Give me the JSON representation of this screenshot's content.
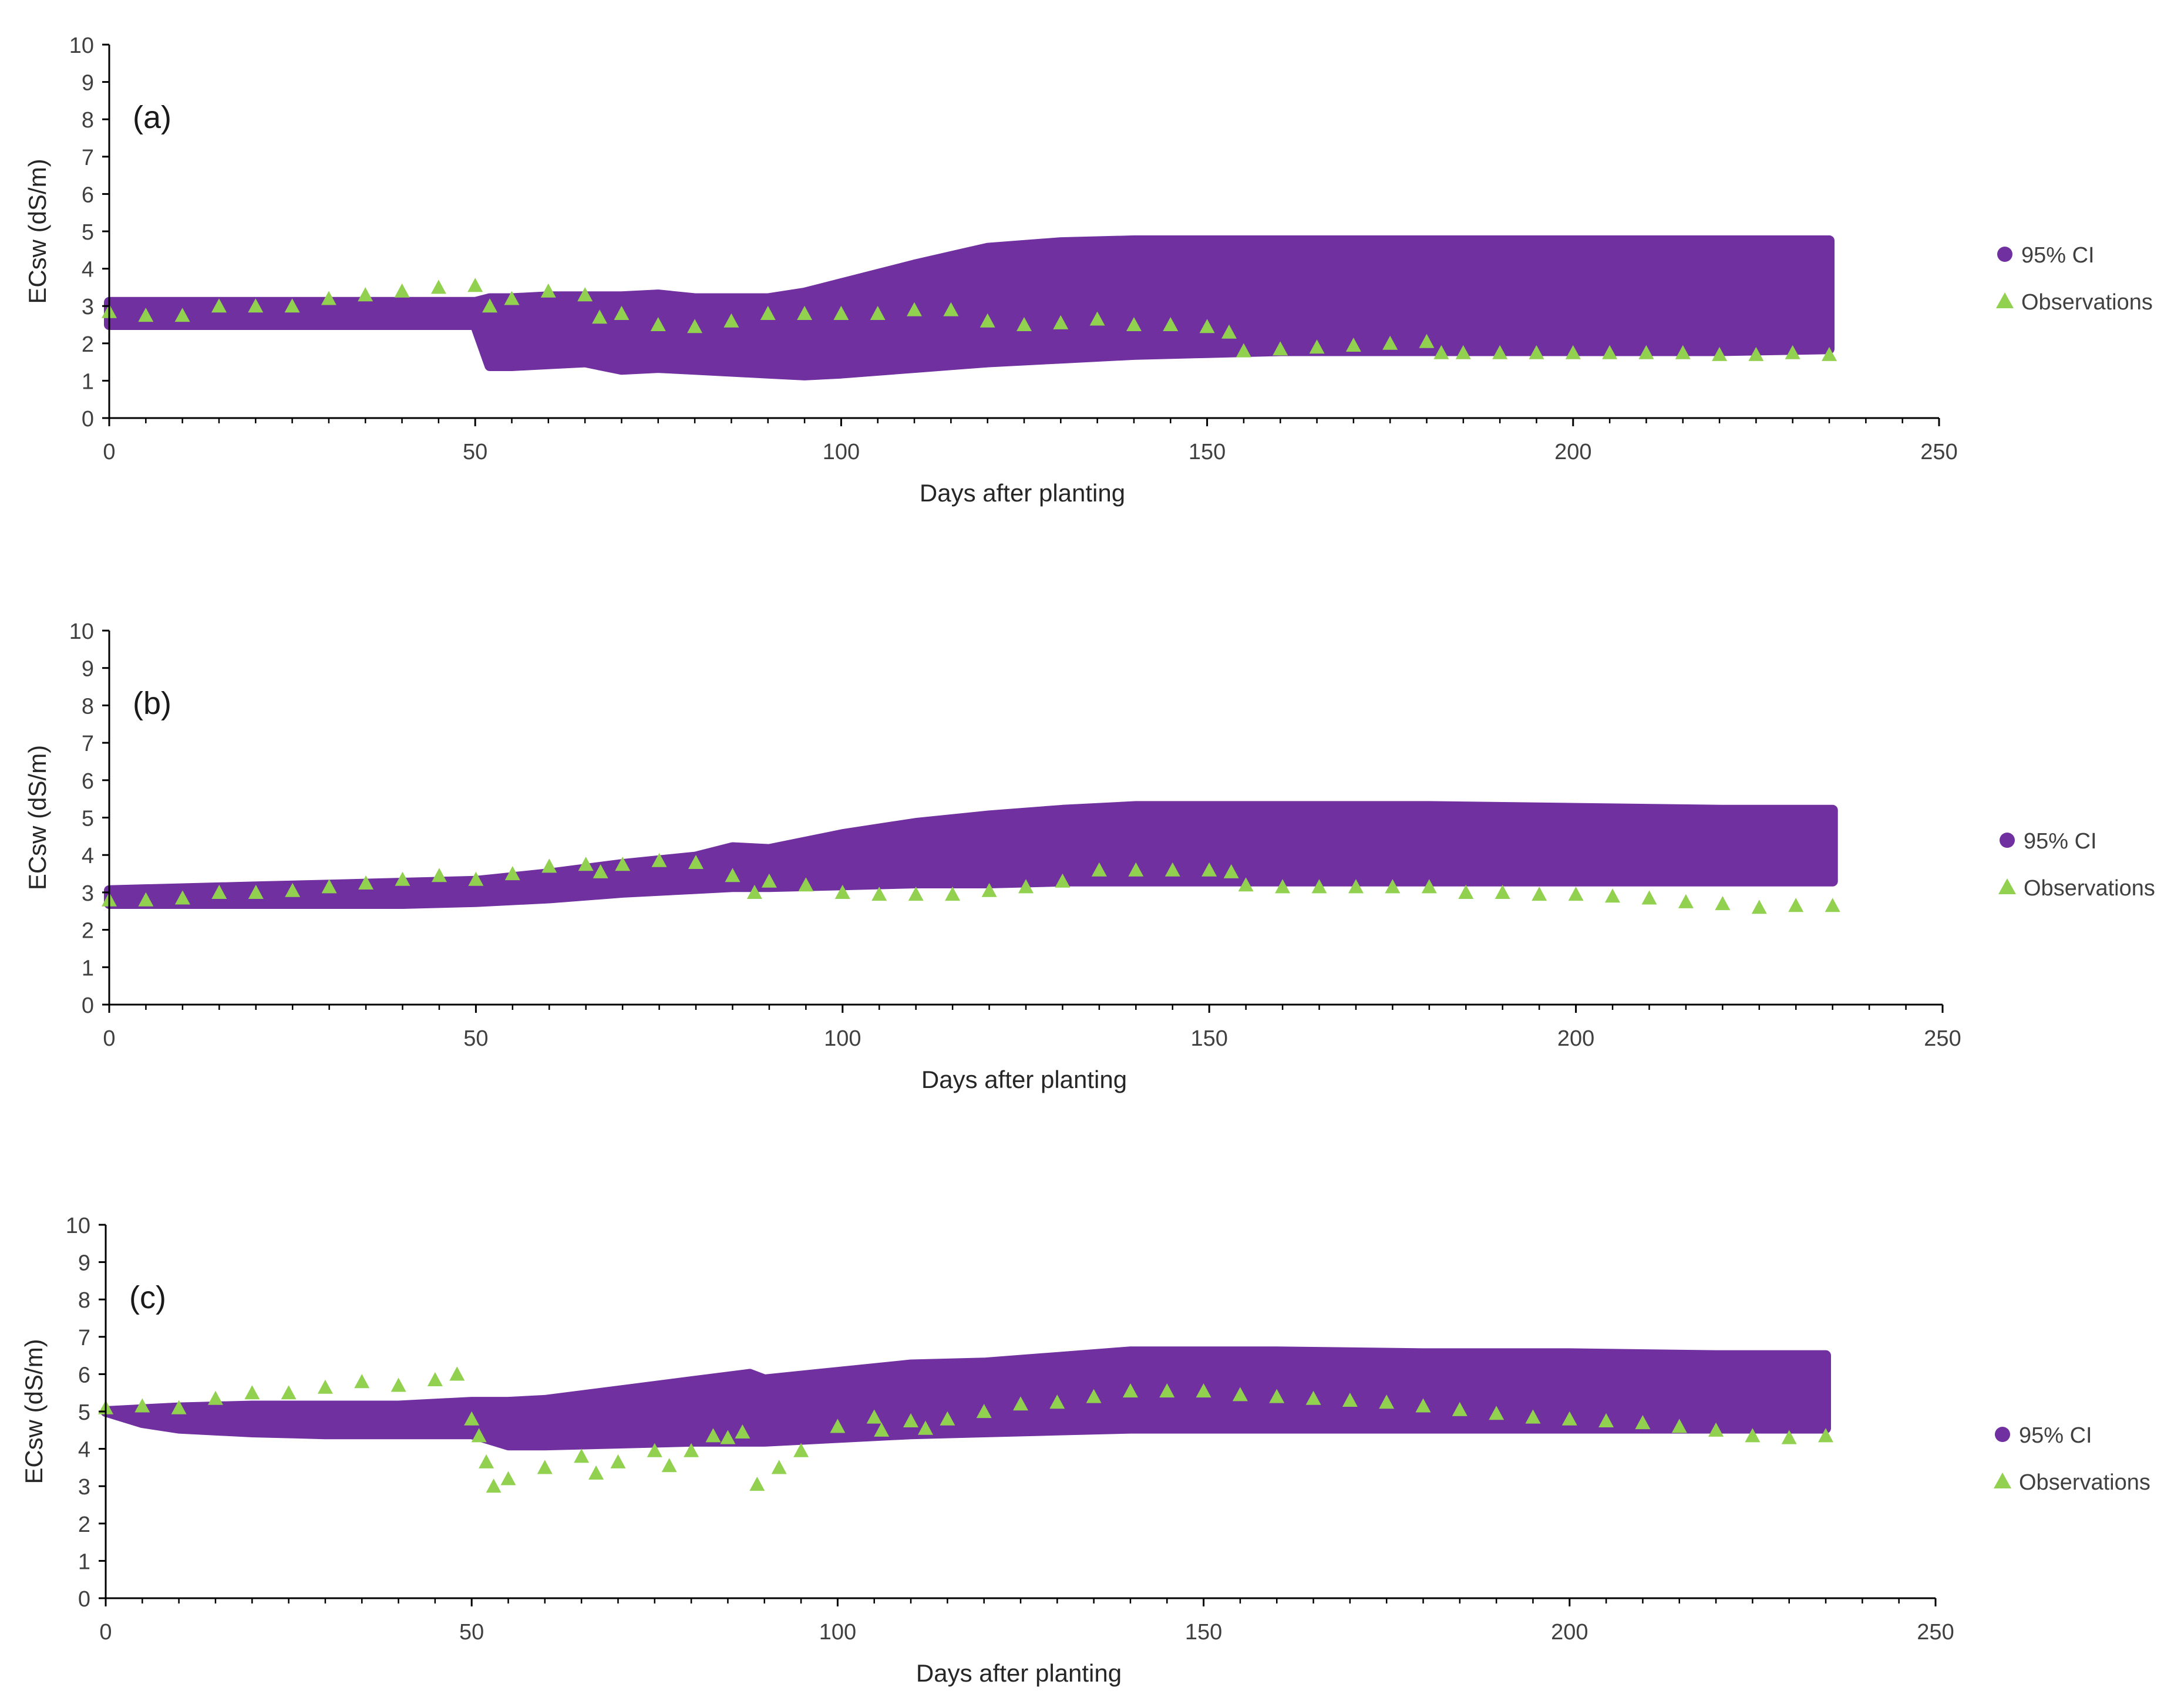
{
  "figure": {
    "colors": {
      "ci": "#7030A0",
      "observations": "#92D050",
      "axis": "#000000"
    },
    "x_ticks": [
      "0",
      "50",
      "100",
      "150",
      "200",
      "250"
    ],
    "y_ticks": [
      "0",
      "1",
      "2",
      "3",
      "4",
      "5",
      "6",
      "7",
      "8",
      "9",
      "10"
    ]
  },
  "chart_data": [
    {
      "type": "area",
      "panel_label": "(a)",
      "xlabel": "Days after planting",
      "ylabel": "ECsw (dS/m)",
      "xlim": [
        0,
        250
      ],
      "ylim": [
        0,
        10
      ],
      "legend": {
        "placement": "right",
        "entries": [
          "95% CI",
          "Observations"
        ]
      },
      "series": [
        {
          "name": "95% CI",
          "kind": "band",
          "x": [
            0,
            10,
            20,
            30,
            40,
            50,
            52,
            55,
            60,
            65,
            70,
            75,
            80,
            85,
            90,
            95,
            100,
            110,
            120,
            130,
            140,
            150,
            160,
            180,
            200,
            220,
            235
          ],
          "lower": [
            2.5,
            2.5,
            2.5,
            2.5,
            2.5,
            2.5,
            1.4,
            1.4,
            1.45,
            1.5,
            1.3,
            1.35,
            1.3,
            1.25,
            1.2,
            1.15,
            1.2,
            1.35,
            1.5,
            1.6,
            1.7,
            1.75,
            1.8,
            1.8,
            1.8,
            1.8,
            1.85
          ],
          "upper": [
            3.1,
            3.1,
            3.1,
            3.1,
            3.1,
            3.1,
            3.2,
            3.2,
            3.25,
            3.25,
            3.25,
            3.3,
            3.2,
            3.2,
            3.2,
            3.35,
            3.6,
            4.1,
            4.55,
            4.7,
            4.75,
            4.75,
            4.75,
            4.75,
            4.75,
            4.75,
            4.75
          ]
        },
        {
          "name": "Observations",
          "kind": "markers",
          "x": [
            0,
            5,
            10,
            15,
            20,
            25,
            30,
            35,
            40,
            45,
            50,
            52,
            55,
            60,
            65,
            67,
            70,
            75,
            80,
            85,
            90,
            95,
            100,
            105,
            110,
            115,
            120,
            125,
            130,
            135,
            140,
            145,
            150,
            153,
            155,
            160,
            165,
            170,
            175,
            180,
            182,
            185,
            190,
            195,
            200,
            205,
            210,
            215,
            220,
            225,
            230,
            235
          ],
          "y": [
            2.85,
            2.75,
            2.75,
            3.0,
            3.0,
            3.0,
            3.2,
            3.3,
            3.4,
            3.5,
            3.55,
            3.0,
            3.2,
            3.4,
            3.3,
            2.7,
            2.8,
            2.5,
            2.45,
            2.6,
            2.8,
            2.8,
            2.8,
            2.8,
            2.9,
            2.9,
            2.6,
            2.5,
            2.55,
            2.65,
            2.5,
            2.5,
            2.45,
            2.3,
            1.8,
            1.85,
            1.9,
            1.95,
            2.0,
            2.05,
            1.75,
            1.75,
            1.75,
            1.75,
            1.75,
            1.75,
            1.75,
            1.75,
            1.7,
            1.7,
            1.75,
            1.7
          ]
        }
      ]
    },
    {
      "type": "area",
      "panel_label": "(b)",
      "xlabel": "Days after planting",
      "ylabel": "ECsw (dS/m)",
      "xlim": [
        0,
        250
      ],
      "ylim": [
        0,
        10
      ],
      "legend": {
        "placement": "right",
        "entries": [
          "95% CI",
          "Observations"
        ]
      },
      "series": [
        {
          "name": "95% CI",
          "kind": "band",
          "x": [
            0,
            10,
            20,
            30,
            40,
            50,
            60,
            70,
            80,
            85,
            90,
            100,
            110,
            120,
            130,
            140,
            150,
            160,
            180,
            200,
            220,
            235
          ],
          "lower": [
            2.7,
            2.7,
            2.7,
            2.7,
            2.7,
            2.75,
            2.85,
            3.0,
            3.1,
            3.15,
            3.15,
            3.2,
            3.25,
            3.25,
            3.3,
            3.3,
            3.3,
            3.3,
            3.3,
            3.3,
            3.3,
            3.3
          ],
          "upper": [
            3.05,
            3.1,
            3.15,
            3.2,
            3.25,
            3.3,
            3.5,
            3.75,
            3.95,
            4.2,
            4.15,
            4.55,
            4.85,
            5.05,
            5.2,
            5.3,
            5.3,
            5.3,
            5.3,
            5.25,
            5.2,
            5.2
          ]
        },
        {
          "name": "Observations",
          "kind": "markers",
          "x": [
            0,
            5,
            10,
            15,
            20,
            25,
            30,
            35,
            40,
            45,
            50,
            55,
            60,
            65,
            67,
            70,
            75,
            80,
            85,
            88,
            90,
            95,
            100,
            105,
            110,
            115,
            120,
            125,
            130,
            135,
            140,
            145,
            150,
            153,
            155,
            160,
            165,
            170,
            175,
            180,
            185,
            190,
            195,
            200,
            205,
            210,
            215,
            220,
            225,
            230,
            235
          ],
          "y": [
            2.8,
            2.8,
            2.85,
            3.0,
            3.0,
            3.05,
            3.15,
            3.25,
            3.35,
            3.45,
            3.35,
            3.5,
            3.7,
            3.75,
            3.55,
            3.75,
            3.85,
            3.8,
            3.45,
            3.0,
            3.3,
            3.2,
            3.0,
            2.95,
            2.95,
            2.95,
            3.05,
            3.15,
            3.3,
            3.6,
            3.6,
            3.6,
            3.6,
            3.55,
            3.2,
            3.15,
            3.15,
            3.15,
            3.15,
            3.15,
            3.0,
            3.0,
            2.95,
            2.95,
            2.9,
            2.85,
            2.75,
            2.7,
            2.6,
            2.65,
            2.65
          ]
        }
      ]
    },
    {
      "type": "area",
      "panel_label": "(c)",
      "xlabel": "Days after planting",
      "ylabel": "ECsw (dS/m)",
      "xlim": [
        0,
        250
      ],
      "ylim": [
        0,
        10
      ],
      "legend": {
        "placement": "right",
        "entries": [
          "95% CI",
          "Observations"
        ]
      },
      "series": [
        {
          "name": "95% CI",
          "kind": "band",
          "x": [
            0,
            5,
            10,
            20,
            30,
            40,
            50,
            55,
            60,
            70,
            80,
            88,
            90,
            100,
            110,
            120,
            130,
            140,
            150,
            160,
            180,
            200,
            220,
            235
          ],
          "lower": [
            5.0,
            4.7,
            4.55,
            4.45,
            4.4,
            4.4,
            4.4,
            4.1,
            4.1,
            4.15,
            4.2,
            4.2,
            4.2,
            4.3,
            4.4,
            4.45,
            4.5,
            4.55,
            4.55,
            4.55,
            4.55,
            4.55,
            4.55,
            4.55
          ],
          "upper": [
            5.0,
            5.05,
            5.1,
            5.15,
            5.15,
            5.15,
            5.25,
            5.25,
            5.3,
            5.55,
            5.8,
            6.0,
            5.85,
            6.05,
            6.25,
            6.3,
            6.45,
            6.6,
            6.6,
            6.6,
            6.55,
            6.55,
            6.5,
            6.5
          ]
        },
        {
          "name": "Observations",
          "kind": "markers",
          "x": [
            0,
            5,
            10,
            15,
            20,
            25,
            30,
            35,
            40,
            45,
            48,
            50,
            51,
            52,
            53,
            55,
            60,
            65,
            67,
            70,
            75,
            77,
            80,
            83,
            85,
            87,
            89,
            92,
            95,
            100,
            105,
            106,
            110,
            112,
            115,
            120,
            125,
            130,
            135,
            140,
            145,
            150,
            155,
            160,
            165,
            170,
            175,
            180,
            185,
            190,
            195,
            200,
            205,
            210,
            215,
            220,
            225,
            230,
            235
          ],
          "y": [
            5.1,
            5.15,
            5.1,
            5.35,
            5.5,
            5.5,
            5.65,
            5.8,
            5.7,
            5.85,
            6.0,
            4.8,
            4.35,
            3.65,
            3.0,
            3.2,
            3.5,
            3.8,
            3.35,
            3.65,
            3.95,
            3.55,
            3.95,
            4.35,
            4.3,
            4.45,
            3.05,
            3.5,
            3.95,
            4.6,
            4.85,
            4.5,
            4.75,
            4.55,
            4.8,
            5.0,
            5.2,
            5.25,
            5.4,
            5.55,
            5.55,
            5.55,
            5.45,
            5.4,
            5.35,
            5.3,
            5.25,
            5.15,
            5.05,
            4.95,
            4.85,
            4.8,
            4.75,
            4.7,
            4.6,
            4.5,
            4.35,
            4.3,
            4.35
          ]
        }
      ]
    }
  ]
}
